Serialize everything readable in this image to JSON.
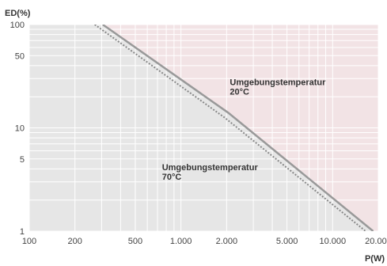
{
  "chart_data": {
    "type": "line",
    "ylabel": "ED(%)",
    "xlabel": "P(W)",
    "xscale": "log",
    "yscale": "log",
    "xlim": [
      100,
      20000
    ],
    "ylim": [
      1,
      100
    ],
    "x_ticks": [
      {
        "value": 100,
        "label": "100"
      },
      {
        "value": 200,
        "label": "200"
      },
      {
        "value": 500,
        "label": "500"
      },
      {
        "value": 1000,
        "label": "1.000"
      },
      {
        "value": 2000,
        "label": "2.000"
      },
      {
        "value": 5000,
        "label": "5.000"
      },
      {
        "value": 10000,
        "label": "10.000"
      },
      {
        "value": 20000,
        "label": "20.000"
      }
    ],
    "y_ticks": [
      {
        "value": 1,
        "label": "1"
      },
      {
        "value": 5,
        "label": "5"
      },
      {
        "value": 10,
        "label": "10"
      },
      {
        "value": 50,
        "label": "50"
      },
      {
        "value": 100,
        "label": "100"
      }
    ],
    "grid": true,
    "series": [
      {
        "name": "Umgebungstemperatur 20°C",
        "style": "solid",
        "color": "#999999",
        "points": [
          [
            305,
            100
          ],
          [
            2050,
            14
          ],
          [
            18500,
            1
          ]
        ]
      },
      {
        "name": "Umgebungstemperatur 70°C",
        "style": "dotted",
        "color": "#888888",
        "points": [
          [
            270,
            100
          ],
          [
            1950,
            12.5
          ],
          [
            16500,
            1
          ]
        ]
      }
    ],
    "annotations": [
      {
        "lines": [
          "Umgebungstemperatur",
          "20°C"
        ],
        "x": 2100,
        "y": 26
      },
      {
        "lines": [
          "Umgebungstemperatur",
          "70°C"
        ],
        "x": 750,
        "y": 3.9
      }
    ],
    "colors": {
      "safe_region": "#e6e6e6",
      "over_region": "#f2e3e5",
      "grid": "#ffffff",
      "curve_solid": "#999999",
      "curve_dotted": "#888888"
    }
  }
}
